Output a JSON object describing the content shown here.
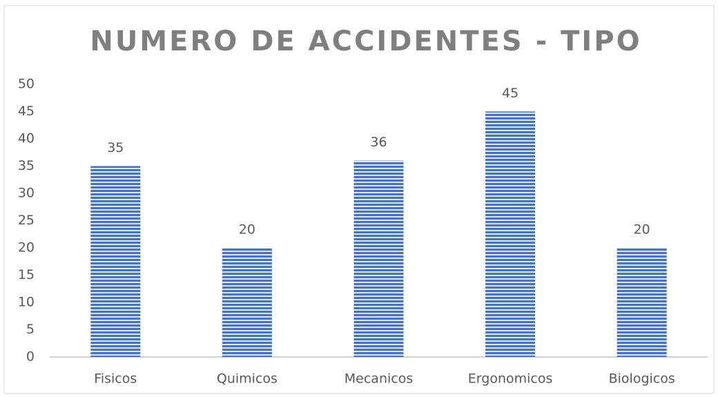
{
  "chart_data": {
    "type": "bar",
    "title": "NUMERO DE ACCIDENTES - TIPO",
    "categories": [
      "Fisicos",
      "Quimicos",
      "Mecanicos",
      "Ergonomicos",
      "Biologicos"
    ],
    "values": [
      35,
      20,
      36,
      45,
      20
    ],
    "color": "#4472c4",
    "ylim": [
      0,
      50
    ],
    "yticks": [
      0,
      5,
      10,
      15,
      20,
      25,
      30,
      35,
      40,
      45,
      50
    ],
    "grid": false
  }
}
